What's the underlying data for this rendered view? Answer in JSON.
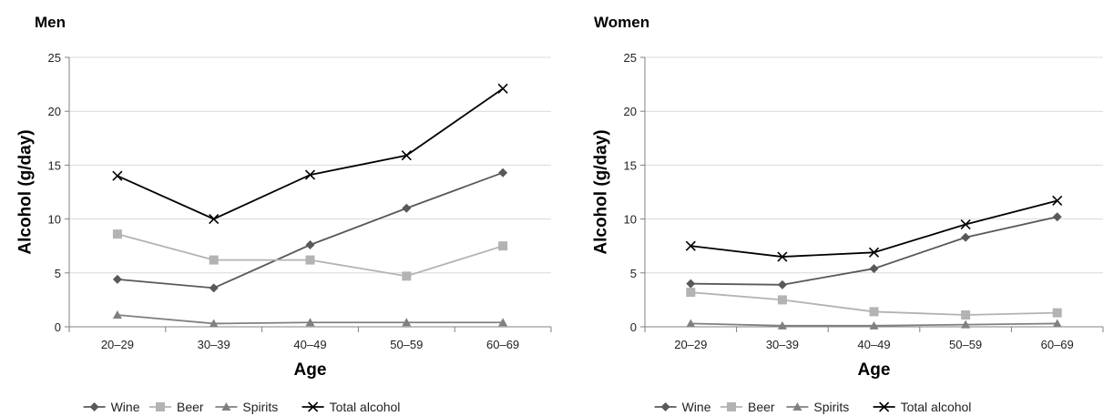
{
  "chart_data": [
    {
      "type": "line",
      "title": "Men",
      "xlabel": "Age",
      "ylabel": "Alcohol (g/day)",
      "categories": [
        "20–29",
        "30–39",
        "40–49",
        "50–59",
        "60–69"
      ],
      "ylim": [
        0,
        25
      ],
      "yticks": [
        0,
        5,
        10,
        15,
        20,
        25
      ],
      "grid": true,
      "legend_position": "bottom",
      "series": [
        {
          "name": "Wine",
          "values": [
            4.4,
            3.6,
            7.6,
            11.0,
            14.3
          ],
          "color": "#595959",
          "marker": "diamond"
        },
        {
          "name": "Beer",
          "values": [
            8.6,
            6.2,
            6.2,
            4.7,
            7.5
          ],
          "color": "#b3b3b3",
          "marker": "square"
        },
        {
          "name": "Spirits",
          "values": [
            1.1,
            0.3,
            0.4,
            0.4,
            0.4
          ],
          "color": "#808080",
          "marker": "triangle"
        },
        {
          "name": "Total alcohol",
          "values": [
            14.0,
            10.0,
            14.1,
            15.9,
            22.1
          ],
          "color": "#000000",
          "marker": "x"
        }
      ]
    },
    {
      "type": "line",
      "title": "Women",
      "xlabel": "Age",
      "ylabel": "Alcohol (g/day)",
      "categories": [
        "20–29",
        "30–39",
        "40–49",
        "50–59",
        "60–69"
      ],
      "ylim": [
        0,
        25
      ],
      "yticks": [
        0,
        5,
        10,
        15,
        20,
        25
      ],
      "grid": true,
      "legend_position": "bottom",
      "series": [
        {
          "name": "Wine",
          "values": [
            4.0,
            3.9,
            5.4,
            8.3,
            10.2
          ],
          "color": "#595959",
          "marker": "diamond"
        },
        {
          "name": "Beer",
          "values": [
            3.2,
            2.5,
            1.4,
            1.1,
            1.3
          ],
          "color": "#b3b3b3",
          "marker": "square"
        },
        {
          "name": "Spirits",
          "values": [
            0.3,
            0.1,
            0.1,
            0.2,
            0.3
          ],
          "color": "#808080",
          "marker": "triangle"
        },
        {
          "name": "Total alcohol",
          "values": [
            7.5,
            6.5,
            6.9,
            9.5,
            11.7
          ],
          "color": "#000000",
          "marker": "x"
        }
      ]
    }
  ]
}
